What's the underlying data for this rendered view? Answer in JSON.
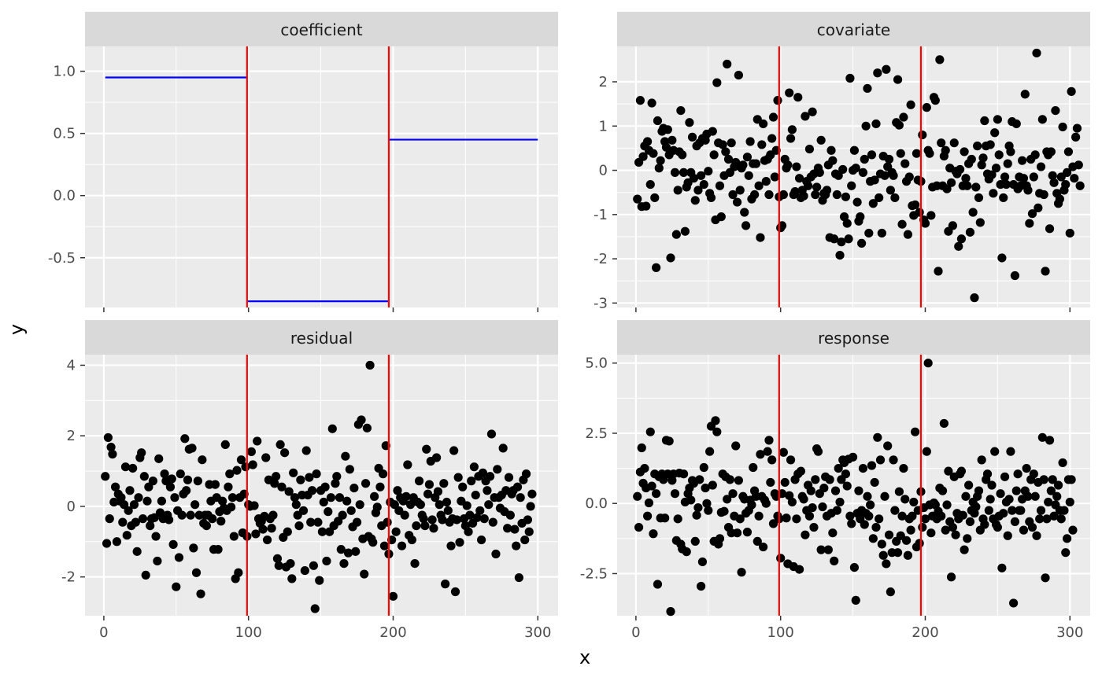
{
  "colors": {
    "panel_bg": "#EBEBEB",
    "strip_bg": "#D9D9D9",
    "grid_major": "#FFFFFF",
    "tick_text": "#4D4D4D",
    "strip_text": "#1A1A1A",
    "changepoint": "#FF0000",
    "coefficient_line": "#0000FF",
    "points": "#000000"
  },
  "chart_data": {
    "type": "faceted",
    "xlabel": "x",
    "ylabel": "y",
    "changepoints": [
      99,
      197
    ],
    "x_ticks": [
      0,
      100,
      200,
      300
    ],
    "facets": [
      {
        "title": "coefficient",
        "type": "step",
        "ylim": [
          -0.9,
          1.2
        ],
        "y_ticks": [
          1.0,
          0.5,
          0.0,
          -0.5
        ],
        "y_tick_labels": [
          "1.0",
          "0.5",
          "0.0",
          "-0.5"
        ],
        "show_x_ticks": false,
        "segments": [
          {
            "x_start": 1,
            "x_end": 99,
            "y": 0.95
          },
          {
            "x_start": 99,
            "x_end": 197,
            "y": -0.85
          },
          {
            "x_start": 197,
            "x_end": 300,
            "y": 0.45
          }
        ]
      },
      {
        "title": "covariate",
        "type": "scatter",
        "ylim": [
          -3.1,
          2.8
        ],
        "y_ticks": [
          2,
          1,
          0,
          -1,
          -2,
          -3
        ],
        "y_tick_labels": [
          "2",
          "1",
          "0",
          "-1",
          "-2",
          "-3"
        ],
        "show_x_ticks": false,
        "y": [
          -0.65,
          0.18,
          1.58,
          -0.82,
          0.31,
          0.55,
          -0.81,
          0.65,
          0.45,
          -0.32,
          1.52,
          0.38,
          -0.62,
          -2.2,
          1.12,
          0.05,
          0.22,
          0.88,
          0.95,
          0.65,
          0.52,
          0.92,
          0.35,
          -1.98,
          0.68,
          0.45,
          -0.05,
          -1.45,
          -0.45,
          0.42,
          1.35,
          0.35,
          -0.05,
          -1.38,
          -0.38,
          -0.28,
          1.08,
          -0.05,
          0.75,
          -0.18,
          -0.68,
          0.55,
          -0.45,
          0.62,
          -0.12,
          0.72,
          -0.32,
          0.68,
          0.82,
          -0.02,
          -0.52,
          -0.62,
          0.88,
          0.35,
          -1.12,
          1.98,
          0.62,
          -0.35,
          -1.05,
          0.58,
          -0.12,
          0.42,
          2.4,
          0.25,
          -0.05,
          0.62,
          -0.55,
          0.08,
          0.18,
          -0.72,
          2.15,
          -0.45,
          0.05,
          0.12,
          -0.95,
          -1.25,
          0.3,
          -0.12,
          0.65,
          -0.65,
          0.15,
          -0.55,
          0.15,
          1.15,
          -0.35,
          -1.52,
          0.58,
          1.05,
          0.22,
          -0.25,
          0.25,
          -0.55,
          0.35,
          0.72,
          1.2,
          -0.15,
          0.45,
          1.58,
          -0.6,
          -1.3,
          -1.25,
          -0.55,
          0.25,
          0.05,
          0.12,
          1.75,
          0.72,
          0.92,
          -0.55,
          -0.48,
          0.08,
          1.65,
          -0.18,
          -0.62,
          -0.45,
          -0.58,
          1.22,
          -0.25,
          -0.35,
          0.48,
          -0.15,
          1.32,
          -0.08,
          -0.55,
          -0.38,
          0.05,
          -0.05,
          0.68,
          -0.68,
          -0.52,
          -0.55,
          -0.45,
          0.12,
          -1.52,
          0.45,
          0.22,
          -1.55,
          -0.08,
          -0.55,
          -0.12,
          -1.92,
          -1.62,
          0.02,
          -1.05,
          -0.6,
          -1.2,
          -1.55,
          2.08,
          -0.35,
          0.0,
          0.45,
          0.05,
          -0.72,
          -1.15,
          -1.05,
          -1.65,
          -0.05,
          0.25,
          1.0,
          1.85,
          -1.42,
          -0.25,
          0.35,
          -0.75,
          -0.22,
          1.05,
          2.2,
          -0.62,
          -0.08,
          -1.42,
          0.32,
          -0.12,
          2.28,
          0.08,
          0.25,
          -0.45,
          -0.05,
          -0.12,
          -0.62,
          1.08,
          2.05,
          1.02,
          0.38,
          -1.22,
          1.2,
          0.15,
          -0.25,
          -1.45,
          -0.15,
          1.48,
          -0.8,
          -1.02,
          -0.78,
          0.38,
          -0.22,
          -0.95,
          -0.25,
          0.8,
          -1.12,
          -1.2,
          1.42,
          0.45,
          0.38,
          -1.02,
          -0.38,
          1.65,
          1.58,
          -0.35,
          -2.28,
          2.5,
          0.62,
          -0.35,
          0.32,
          0.45,
          -0.42,
          -1.38,
          0.05,
          -0.28,
          -1.25,
          0.62,
          -0.02,
          -0.08,
          -1.72,
          0.02,
          -1.55,
          -0.35,
          0.42,
          -0.18,
          -0.35,
          0.15,
          -1.4,
          0.25,
          -0.95,
          -2.88,
          -0.38,
          0.55,
          -0.62,
          -1.18,
          0.12,
          0.28,
          1.12,
          0.55,
          -0.08,
          -0.2,
          0.58,
          -0.1,
          -0.52,
          0.85,
          0.05,
          1.15,
          0.35,
          -0.32,
          -1.98,
          -0.62,
          -0.15,
          -0.32,
          0.15,
          0.55,
          0.42,
          1.1,
          -0.32,
          -2.38,
          1.05,
          -0.42,
          -0.15,
          -0.35,
          0.22,
          -0.18,
          1.72,
          -0.35,
          -0.45,
          -1.2,
          0.25,
          -0.98,
          -0.15,
          0.35,
          2.65,
          -0.85,
          -0.52,
          0.08,
          1.15,
          -0.55,
          -2.28,
          0.42,
          0.35,
          -1.32,
          0.42,
          -0.12,
          -0.28,
          1.35,
          -0.52,
          -0.75,
          -0.65,
          -0.15,
          0.98,
          -0.45,
          -0.32,
          -0.05,
          0.42,
          -1.42,
          1.78,
          0.08,
          -0.18,
          0.75,
          0.95,
          0.12,
          -0.35
        ]
      },
      {
        "title": "residual",
        "type": "scatter",
        "ylim": [
          -3.1,
          4.3
        ],
        "y_ticks": [
          4,
          2,
          0,
          -2
        ],
        "y_tick_labels": [
          "4",
          "2",
          "0",
          "-2"
        ],
        "show_x_ticks": true,
        "y": [
          0.85,
          -1.05,
          1.95,
          -0.35,
          1.68,
          1.48,
          0.12,
          0.55,
          -1.0,
          0.35,
          0.15,
          0.25,
          -0.45,
          0.05,
          1.12,
          -0.82,
          -0.12,
          0.45,
          -0.55,
          1.08,
          0.05,
          -0.45,
          -1.28,
          0.25,
          1.38,
          1.52,
          -0.35,
          0.85,
          -1.95,
          0.15,
          0.55,
          -0.55,
          -0.35,
          0.72,
          -0.32,
          -0.85,
          -1.55,
          1.35,
          -0.18,
          0.15,
          -0.35,
          0.92,
          0.72,
          -0.25,
          -0.38,
          0.55,
          0.78,
          -1.08,
          0.25,
          -2.28,
          -0.12,
          -1.45,
          0.92,
          -0.25,
          0.35,
          1.92,
          0.45,
          0.75,
          1.62,
          -0.25,
          1.65,
          -1.18,
          0.05,
          -1.88,
          0.72,
          -0.25,
          -2.48,
          1.32,
          -0.48,
          -0.25,
          -0.55,
          -0.25,
          0.62,
          0.15,
          -0.35,
          -1.22,
          0.62,
          0.25,
          -1.22,
          -0.15,
          -0.42,
          0.15,
          -0.05,
          1.75,
          -0.12,
          0.55,
          0.92,
          -0.02,
          0.25,
          -0.85,
          -2.05,
          1.02,
          -1.88,
          0.25,
          1.32,
          -0.75,
          0.35,
          1.12,
          -0.85,
          0.05,
          0.0,
          1.55,
          1.18,
          0.02,
          -0.78,
          1.85,
          -0.35,
          -0.48,
          -0.42,
          -0.65,
          -0.28,
          1.38,
          -0.95,
          0.75,
          -0.35,
          -0.62,
          -0.25,
          0.65,
          0.85,
          -1.48,
          -1.68,
          1.75,
          0.55,
          -0.88,
          1.52,
          -1.72,
          -0.72,
          0.42,
          -1.62,
          -2.05,
          0.95,
          0.25,
          0.05,
          -0.25,
          -0.55,
          0.75,
          0.32,
          -0.12,
          -1.82,
          1.58,
          0.32,
          0.82,
          -0.45,
          0.45,
          -1.68,
          -2.9,
          0.92,
          -0.45,
          -2.1,
          0.45,
          -0.72,
          0.12,
          0.55,
          -1.55,
          -0.15,
          -0.72,
          0.25,
          2.2,
          -0.55,
          0.65,
          0.85,
          -0.42,
          0.25,
          -1.22,
          -0.25,
          -1.62,
          1.42,
          0.15,
          -1.32,
          1.05,
          -0.12,
          -0.58,
          0.52,
          -1.28,
          -0.45,
          2.32,
          0.05,
          2.45,
          -0.92,
          -1.92,
          0.65,
          2.22,
          -0.85,
          4.0,
          -0.92,
          -1.02,
          0.28,
          -0.18,
          -0.02,
          1.08,
          0.55,
          -0.55,
          0.92,
          -1.12,
          1.72,
          -0.45,
          -1.35,
          0.12,
          -0.95,
          -2.55,
          0.05,
          -0.72,
          0.45,
          -0.12,
          0.25,
          -1.12,
          0.15,
          -0.25,
          0.28,
          1.18,
          -0.82,
          0.05,
          -0.95,
          0.25,
          -1.62,
          -0.55,
          0.12,
          0.72,
          0.05,
          -0.25,
          -0.35,
          -0.55,
          1.62,
          0.35,
          0.62,
          1.28,
          -0.38,
          -0.62,
          0.25,
          1.38,
          0.42,
          0.05,
          -0.25,
          -0.38,
          0.65,
          -2.2,
          0.12,
          -0.12,
          -0.45,
          -1.12,
          -0.35,
          1.58,
          -2.42,
          -0.38,
          0.82,
          -1.02,
          0.15,
          0.55,
          -0.35,
          -0.55,
          0.02,
          -0.72,
          -0.25,
          0.72,
          -0.48,
          1.12,
          0.32,
          -0.32,
          0.85,
          -0.12,
          -0.95,
          0.95,
          -0.35,
          0.72,
          0.45,
          0.05,
          0.85,
          2.05,
          -0.45,
          0.25,
          -1.35,
          1.05,
          0.25,
          -0.05,
          0.32,
          1.65,
          -0.15,
          0.45,
          -0.62,
          0.82,
          -0.25,
          0.35,
          0.45,
          -0.65,
          -1.12,
          0.55,
          -2.02,
          0.25,
          -0.48,
          0.75,
          -0.95,
          0.92,
          -0.38,
          -0.72,
          0.0,
          0.35
        ]
      },
      {
        "title": "response",
        "type": "scatter",
        "ylim": [
          -4.0,
          5.3
        ],
        "y_ticks": [
          5.0,
          2.5,
          0.0,
          -2.5
        ],
        "y_tick_labels": [
          "5.0",
          "2.5",
          "0.0",
          "-2.5"
        ],
        "show_x_ticks": true,
        "y": [
          0.25,
          -0.85,
          1.12,
          1.98,
          0.72,
          1.25,
          0.55,
          -0.45,
          0.02,
          2.55,
          0.62,
          -1.08,
          1.05,
          0.35,
          -2.88,
          0.95,
          -0.52,
          1.05,
          0.85,
          -0.52,
          2.25,
          1.05,
          2.22,
          -3.85,
          0.82,
          1.05,
          0.35,
          -1.32,
          -0.55,
          1.08,
          -1.45,
          -1.62,
          1.05,
          0.05,
          -1.72,
          0.35,
          0.55,
          0.12,
          0.82,
          0.72,
          -1.35,
          -0.42,
          -0.15,
          0.85,
          -2.95,
          -2.08,
          1.28,
          0.55,
          0.0,
          -0.25,
          1.85,
          2.75,
          0.65,
          -1.35,
          2.95,
          2.55,
          -1.45,
          -1.25,
          -0.32,
          1.05,
          -0.28,
          0.95,
          0.15,
          -0.85,
          0.85,
          -1.05,
          0.35,
          -0.45,
          2.05,
          -1.05,
          0.82,
          -0.55,
          -2.45,
          0.25,
          0.15,
          -0.35,
          -1.02,
          -0.25,
          0.12,
          -0.05,
          1.28,
          0.45,
          0.25,
          -1.35,
          -0.45,
          1.75,
          0.25,
          -1.55,
          0.12,
          0.0,
          1.85,
          2.25,
          0.75,
          1.55,
          -0.72,
          0.35,
          0.25,
          -0.45,
          -0.55,
          -1.95,
          0.35,
          1.82,
          0.75,
          -0.52,
          -2.15,
          0.28,
          1.55,
          0.05,
          -2.25,
          0.85,
          -0.55,
          1.05,
          -2.35,
          1.15,
          0.25,
          0.15,
          -1.12,
          -0.25,
          0.65,
          -0.45,
          0.45,
          -0.15,
          -0.85,
          0.85,
          1.95,
          1.85,
          0.35,
          -1.65,
          -0.12,
          0.55,
          0.95,
          -0.45,
          -1.65,
          0.85,
          -0.35,
          -1.05,
          -2.05,
          0.45,
          -0.25,
          1.25,
          0.05,
          0.85,
          1.55,
          1.45,
          1.05,
          0.62,
          1.58,
          -0.45,
          -0.72,
          1.65,
          -2.28,
          -3.45,
          -0.35,
          0.45,
          -0.55,
          -0.25,
          1.25,
          -0.75,
          -0.35,
          0.25,
          -0.45,
          -0.05,
          1.35,
          -1.25,
          0.75,
          -0.85,
          2.35,
          -0.55,
          1.55,
          -1.45,
          -1.85,
          0.25,
          -2.15,
          2.05,
          -1.12,
          -3.15,
          -1.75,
          1.55,
          -0.25,
          -1.35,
          -1.75,
          0.42,
          -1.15,
          -0.45,
          1.25,
          0.15,
          -1.32,
          -1.85,
          -0.55,
          -0.95,
          -0.45,
          0.05,
          2.55,
          -1.55,
          -0.25,
          -1.42,
          0.42,
          -0.85,
          -0.15,
          -0.55,
          1.85,
          5.0,
          -0.05,
          -1.05,
          -0.45,
          0.02,
          -0.05,
          -0.55,
          -0.28,
          0.55,
          -0.45,
          0.45,
          2.85,
          -0.95,
          -0.05,
          1.15,
          -0.65,
          -2.62,
          -0.85,
          0.95,
          -1.12,
          -0.35,
          -0.55,
          1.05,
          1.15,
          -0.42,
          -1.65,
          0.25,
          -1.25,
          0.65,
          -0.65,
          -0.25,
          0.05,
          -0.35,
          -0.12,
          0.25,
          0.45,
          -0.95,
          1.55,
          -0.55,
          -0.75,
          0.85,
          1.05,
          -0.25,
          0.15,
          0.65,
          -0.55,
          1.85,
          -0.75,
          -0.85,
          -0.45,
          0.35,
          -2.3,
          -0.35,
          0.95,
          0.05,
          -1.15,
          0.15,
          1.85,
          -0.25,
          -3.55,
          -0.65,
          0.45,
          1.05,
          -0.25,
          -0.25,
          0.15,
          -0.95,
          0.45,
          1.25,
          0.25,
          -0.65,
          0.85,
          -0.85,
          1.05,
          0.25,
          -1.15,
          0.75,
          -0.55,
          -0.25,
          2.35,
          0.85,
          -2.65,
          -0.55,
          0.05,
          2.25,
          0.45,
          0.85,
          -0.45,
          -0.05,
          0.25,
          0.65,
          -0.25,
          -0.55,
          1.45,
          -0.25,
          -1.75,
          -1.25,
          0.85,
          0.05,
          0.85,
          -0.95
        ]
      }
    ]
  }
}
